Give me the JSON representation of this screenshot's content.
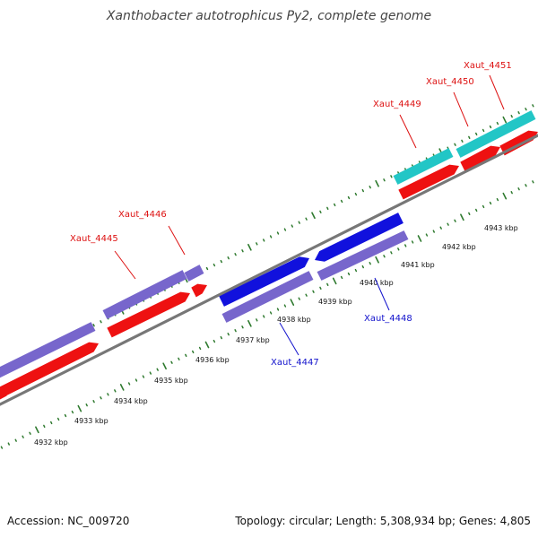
{
  "title": "Xanthobacter autotrophicus Py2, complete genome",
  "footer": {
    "accession": "Accession: NC_009720",
    "summary": "Topology: circular; Length: 5,308,934 bp; Genes: 4,805"
  },
  "colors": {
    "backbone": "#777777",
    "tick": "#2f7a2f",
    "cds_red": "#ee1111",
    "cds_purple": "#7766cc",
    "cds_blue": "#1111dd",
    "cds_cyan": "#22c6c6",
    "label_red": "#dd1111",
    "label_blue": "#1111cc"
  },
  "tick_labels": [
    "4932 kbp",
    "4933 kbp",
    "4934 kbp",
    "4935 kbp",
    "4936 kbp",
    "4937 kbp",
    "4938 kbp",
    "4939 kbp",
    "4940 kbp",
    "4941 kbp",
    "4942 kbp",
    "4943 kbp"
  ],
  "gene_labels": [
    {
      "text": "Xaut_4445",
      "color": "red"
    },
    {
      "text": "Xaut_4446",
      "color": "red"
    },
    {
      "text": "Xaut_4447",
      "color": "blue"
    },
    {
      "text": "Xaut_4448",
      "color": "blue"
    },
    {
      "text": "Xaut_4449",
      "color": "red"
    },
    {
      "text": "Xaut_4450",
      "color": "red"
    },
    {
      "text": "Xaut_4451",
      "color": "red"
    }
  ]
}
